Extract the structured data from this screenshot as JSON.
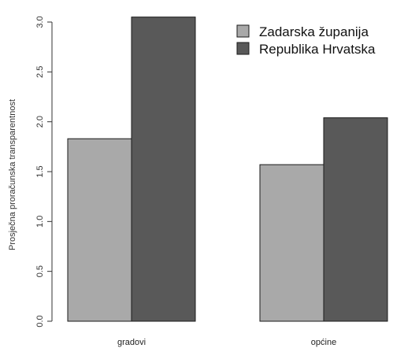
{
  "chart_data": {
    "type": "bar",
    "ylabel": "Prosječna proračunska transparentnost",
    "xlabel": "",
    "categories": [
      "gradovi",
      "općine"
    ],
    "series": [
      {
        "name": "Zadarska županija",
        "values": [
          1.83,
          1.57
        ],
        "color": "#a9a9a9"
      },
      {
        "name": "Republika Hrvatska",
        "values": [
          3.05,
          2.04
        ],
        "color": "#595959"
      }
    ],
    "ylim": [
      0,
      3.0
    ],
    "yticks": [
      "0.0",
      "0.5",
      "1.0",
      "1.5",
      "2.0",
      "2.5",
      "3.0"
    ],
    "legend_position": "top-right",
    "grid": false
  }
}
